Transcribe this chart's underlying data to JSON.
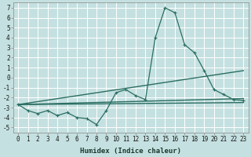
{
  "xlabel": "Humidex (Indice chaleur)",
  "xlim": [
    -0.5,
    23.5
  ],
  "ylim": [
    -5.5,
    7.5
  ],
  "xticks": [
    0,
    1,
    2,
    3,
    4,
    5,
    6,
    7,
    8,
    9,
    10,
    11,
    12,
    13,
    14,
    15,
    16,
    17,
    18,
    19,
    20,
    21,
    22,
    23
  ],
  "yticks": [
    -5,
    -4,
    -3,
    -2,
    -1,
    0,
    1,
    2,
    3,
    4,
    5,
    6,
    7
  ],
  "background_color": "#c5e0e0",
  "grid_color": "#ffffff",
  "line_color": "#2a6e62",
  "line1_x": [
    0,
    1,
    2,
    3,
    4,
    5,
    6,
    7,
    8,
    9,
    10,
    11,
    12,
    13,
    14,
    15,
    16,
    17,
    18,
    19,
    20,
    21,
    22,
    23
  ],
  "line1_y": [
    -2.7,
    -3.3,
    -3.6,
    -3.3,
    -3.8,
    -3.5,
    -4.0,
    -4.1,
    -4.7,
    -3.3,
    -1.5,
    -1.2,
    -1.8,
    -2.2,
    4.0,
    7.0,
    6.5,
    3.3,
    2.5,
    0.7,
    -1.2,
    -1.7,
    -2.2,
    -2.3
  ],
  "line2_x": [
    0,
    23
  ],
  "line2_y": [
    -2.7,
    0.7
  ],
  "line3_x": [
    0,
    23
  ],
  "line3_y": [
    -2.7,
    -2.1
  ],
  "line4_x": [
    0,
    23
  ],
  "line4_y": [
    -2.7,
    -2.5
  ],
  "tick_fontsize": 5.5,
  "label_fontsize": 6.5
}
